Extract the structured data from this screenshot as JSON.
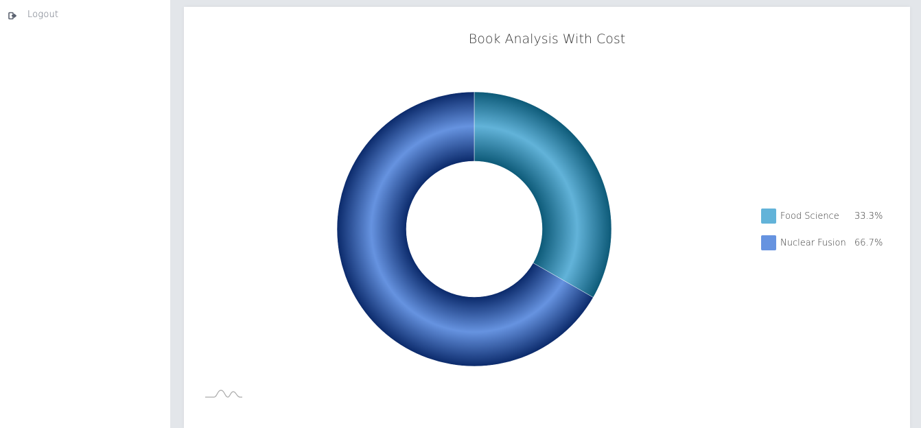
{
  "sidebar": {
    "logout_label": "Logout",
    "logout_icon": "sign-out-icon"
  },
  "colors": {
    "food_science": "#62b3d9",
    "nuclear_fusion": "#6693e0",
    "text": "#333333"
  },
  "chart_data": {
    "type": "pie",
    "variant": "donut",
    "title": "Book Analysis With Cost",
    "slices": [
      {
        "label": "Food Science",
        "percent": "33.3%",
        "value": 33.3,
        "color": "#62b3d9",
        "dark": "#0d5a78"
      },
      {
        "label": "Nuclear Fusion",
        "percent": "66.7%",
        "value": 66.7,
        "color": "#6693e0",
        "dark": "#0b2a6b"
      }
    ],
    "legend_position": "right"
  }
}
